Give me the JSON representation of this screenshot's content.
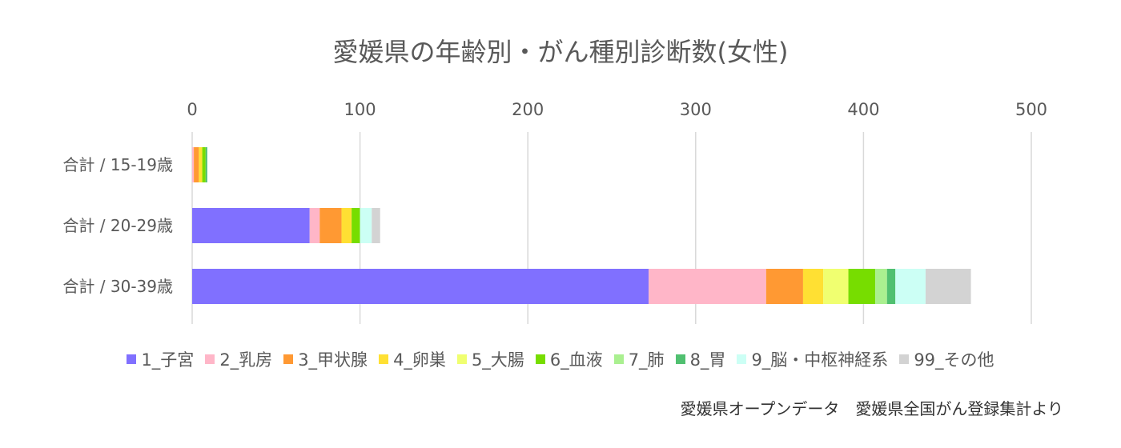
{
  "title": "愛媛県の年齢別・がん種別診断数(女性)",
  "source": "愛媛県オープンデータ　愛媛県全国がん登録集計より",
  "colors": [
    "#8070FF",
    "#FFB6C8",
    "#FF9933",
    "#FFE033",
    "#F0FF70",
    "#77DD00",
    "#AAF090",
    "#50C070",
    "#CCFFF5",
    "#D3D3D3"
  ],
  "chart_data": {
    "type": "bar",
    "orientation": "horizontal",
    "stacked": true,
    "categories": [
      "合計 / 15-19歳",
      "合計 / 20-29歳",
      "合計 / 30-39歳"
    ],
    "series": [
      {
        "name": "1_子宮",
        "values": [
          0,
          70,
          272
        ]
      },
      {
        "name": "2_乳房",
        "values": [
          1,
          6,
          70
        ]
      },
      {
        "name": "3_甲状腺",
        "values": [
          3,
          13,
          22
        ]
      },
      {
        "name": "4_卵巣",
        "values": [
          2,
          6,
          12
        ]
      },
      {
        "name": "5_大腸",
        "values": [
          0,
          0,
          15
        ]
      },
      {
        "name": "6_血液",
        "values": [
          2,
          5,
          16
        ]
      },
      {
        "name": "7_肺",
        "values": [
          0,
          0,
          7
        ]
      },
      {
        "name": "8_胃",
        "values": [
          1,
          0,
          5
        ]
      },
      {
        "name": "9_脳・中枢神経系",
        "values": [
          0,
          7,
          18
        ]
      },
      {
        "name": "99_その他",
        "values": [
          0,
          5,
          27
        ]
      }
    ],
    "xlim": [
      0,
      500
    ],
    "xticks": [
      "0",
      "100",
      "200",
      "300",
      "400",
      "500"
    ],
    "x_axis_position": "top",
    "grid": true,
    "legend": "bottom"
  }
}
